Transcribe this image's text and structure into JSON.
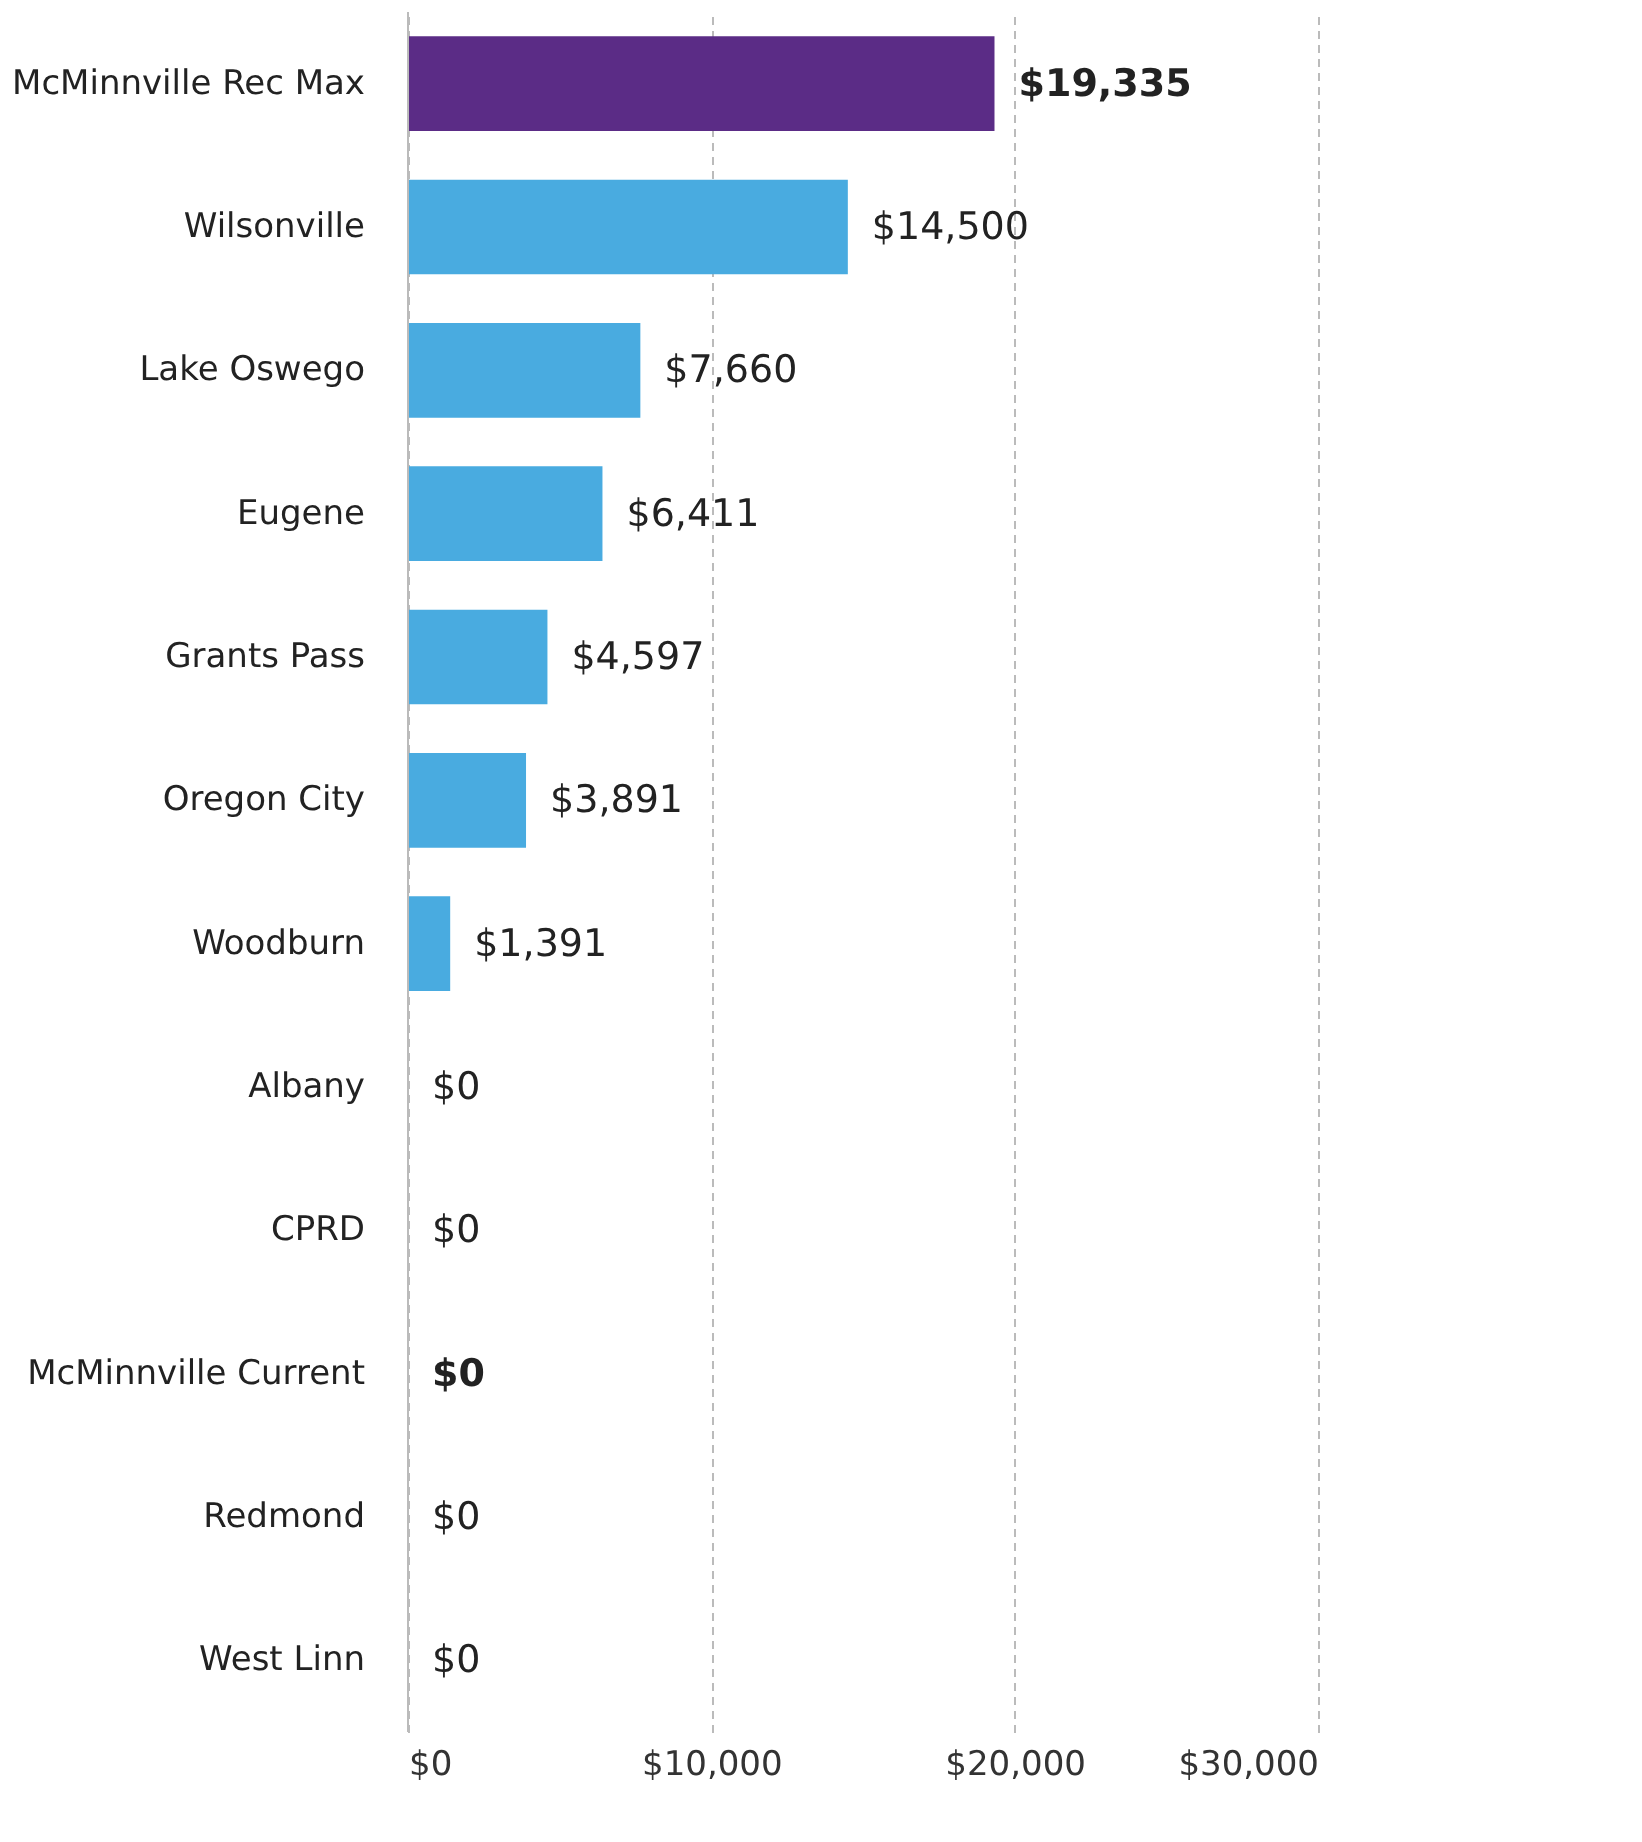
{
  "chart_data": {
    "type": "bar",
    "orientation": "horizontal",
    "categories": [
      "McMinnville Rec Max",
      "Wilsonville",
      "Lake Oswego",
      "Eugene",
      "Grants Pass",
      "Oregon City",
      "Woodburn",
      "Albany",
      "CPRD",
      "McMinnville Current",
      "Redmond",
      "West Linn"
    ],
    "values": [
      19335,
      14500,
      7660,
      6411,
      4597,
      3891,
      1391,
      0,
      0,
      0,
      0,
      0
    ],
    "colors": [
      "#5b2c86",
      "#49abe0",
      "#49abe0",
      "#49abe0",
      "#49abe0",
      "#49abe0",
      "#49abe0",
      "#49abe0",
      "#49abe0",
      "#5b2c86",
      "#49abe0",
      "#49abe0"
    ],
    "value_labels": [
      "$19,335",
      "$14,500",
      "$7,660",
      "$6,411",
      "$4,597",
      "$3,891",
      "$1,391",
      "$0",
      "$0",
      "$0",
      "$0",
      "$0"
    ],
    "xlim": [
      0,
      30000
    ],
    "xticks": [
      {
        "value": 0,
        "label": "$0"
      },
      {
        "value": 10000,
        "label": "$10,000"
      },
      {
        "value": 20000,
        "label": "$20,000"
      },
      {
        "value": 30000,
        "label": "$30,000"
      }
    ],
    "grid": "x"
  }
}
